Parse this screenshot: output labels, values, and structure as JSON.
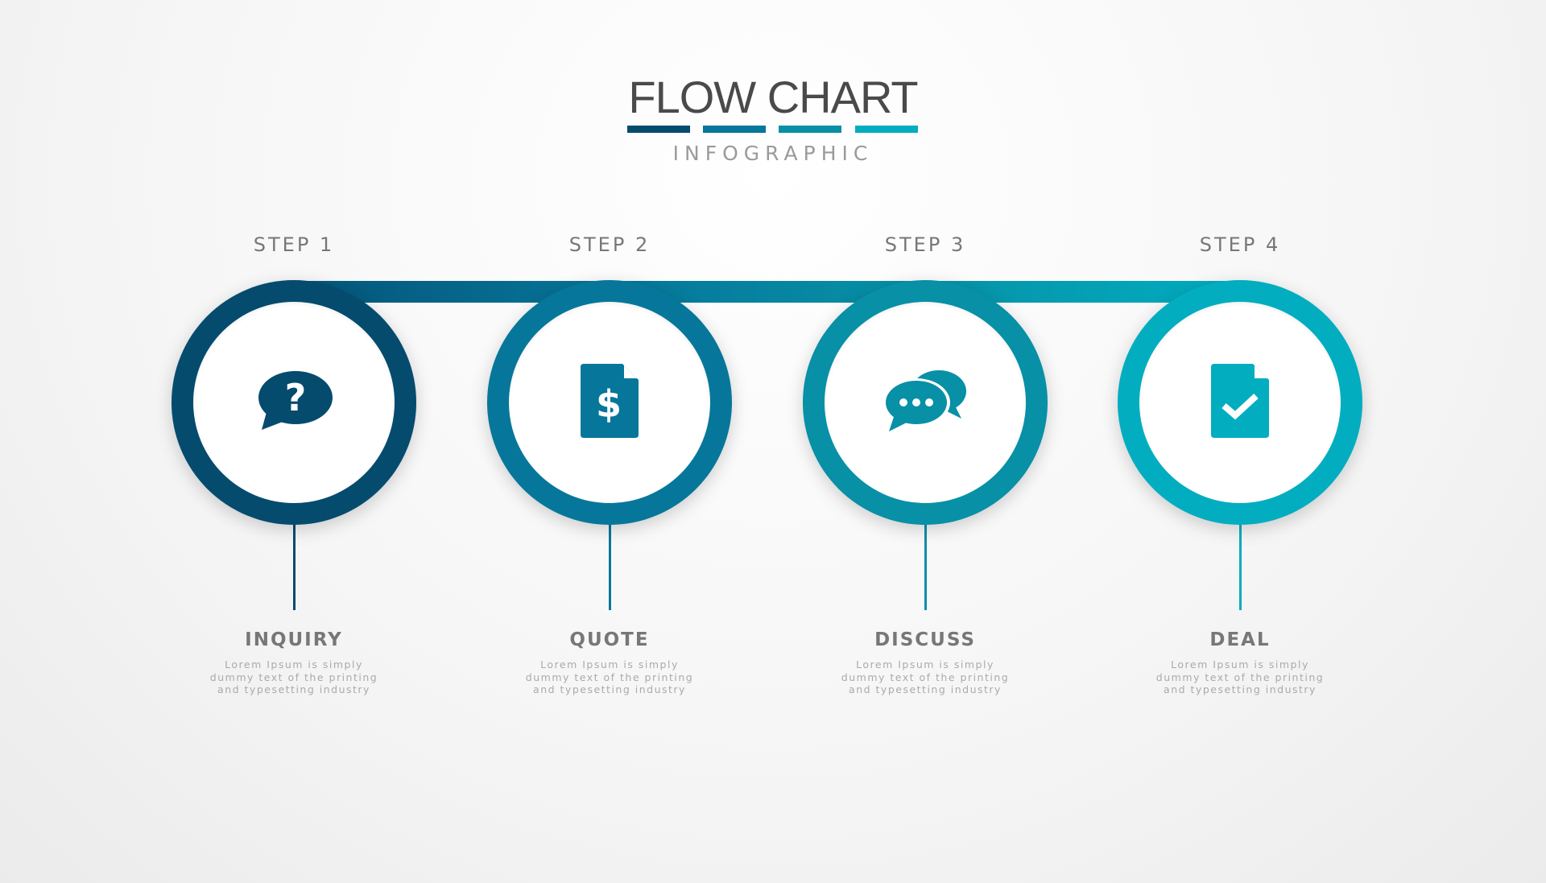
{
  "title": "FLOW CHART",
  "subtitle": "INFOGRAPHIC",
  "colors": [
    "#054b6e",
    "#06779a",
    "#0790a6",
    "#02adc0"
  ],
  "steps": [
    {
      "step": "STEP 1",
      "name": "INQUIRY",
      "icon": "question-speech-bubble-icon",
      "desc": [
        "Lorem Ipsum is simply",
        "dummy text of the printing",
        "and typesetting industry"
      ]
    },
    {
      "step": "STEP 2",
      "name": "QUOTE",
      "icon": "dollar-document-icon",
      "desc": [
        "Lorem Ipsum is simply",
        "dummy text of the printing",
        "and typesetting industry"
      ]
    },
    {
      "step": "STEP 3",
      "name": "DISCUSS",
      "icon": "chat-bubbles-icon",
      "desc": [
        "Lorem Ipsum is simply",
        "dummy text of the printing",
        "and typesetting industry"
      ]
    },
    {
      "step": "STEP 4",
      "name": "DEAL",
      "icon": "document-check-icon",
      "desc": [
        "Lorem Ipsum is simply",
        "dummy text of the printing",
        "and typesetting industry"
      ]
    }
  ]
}
